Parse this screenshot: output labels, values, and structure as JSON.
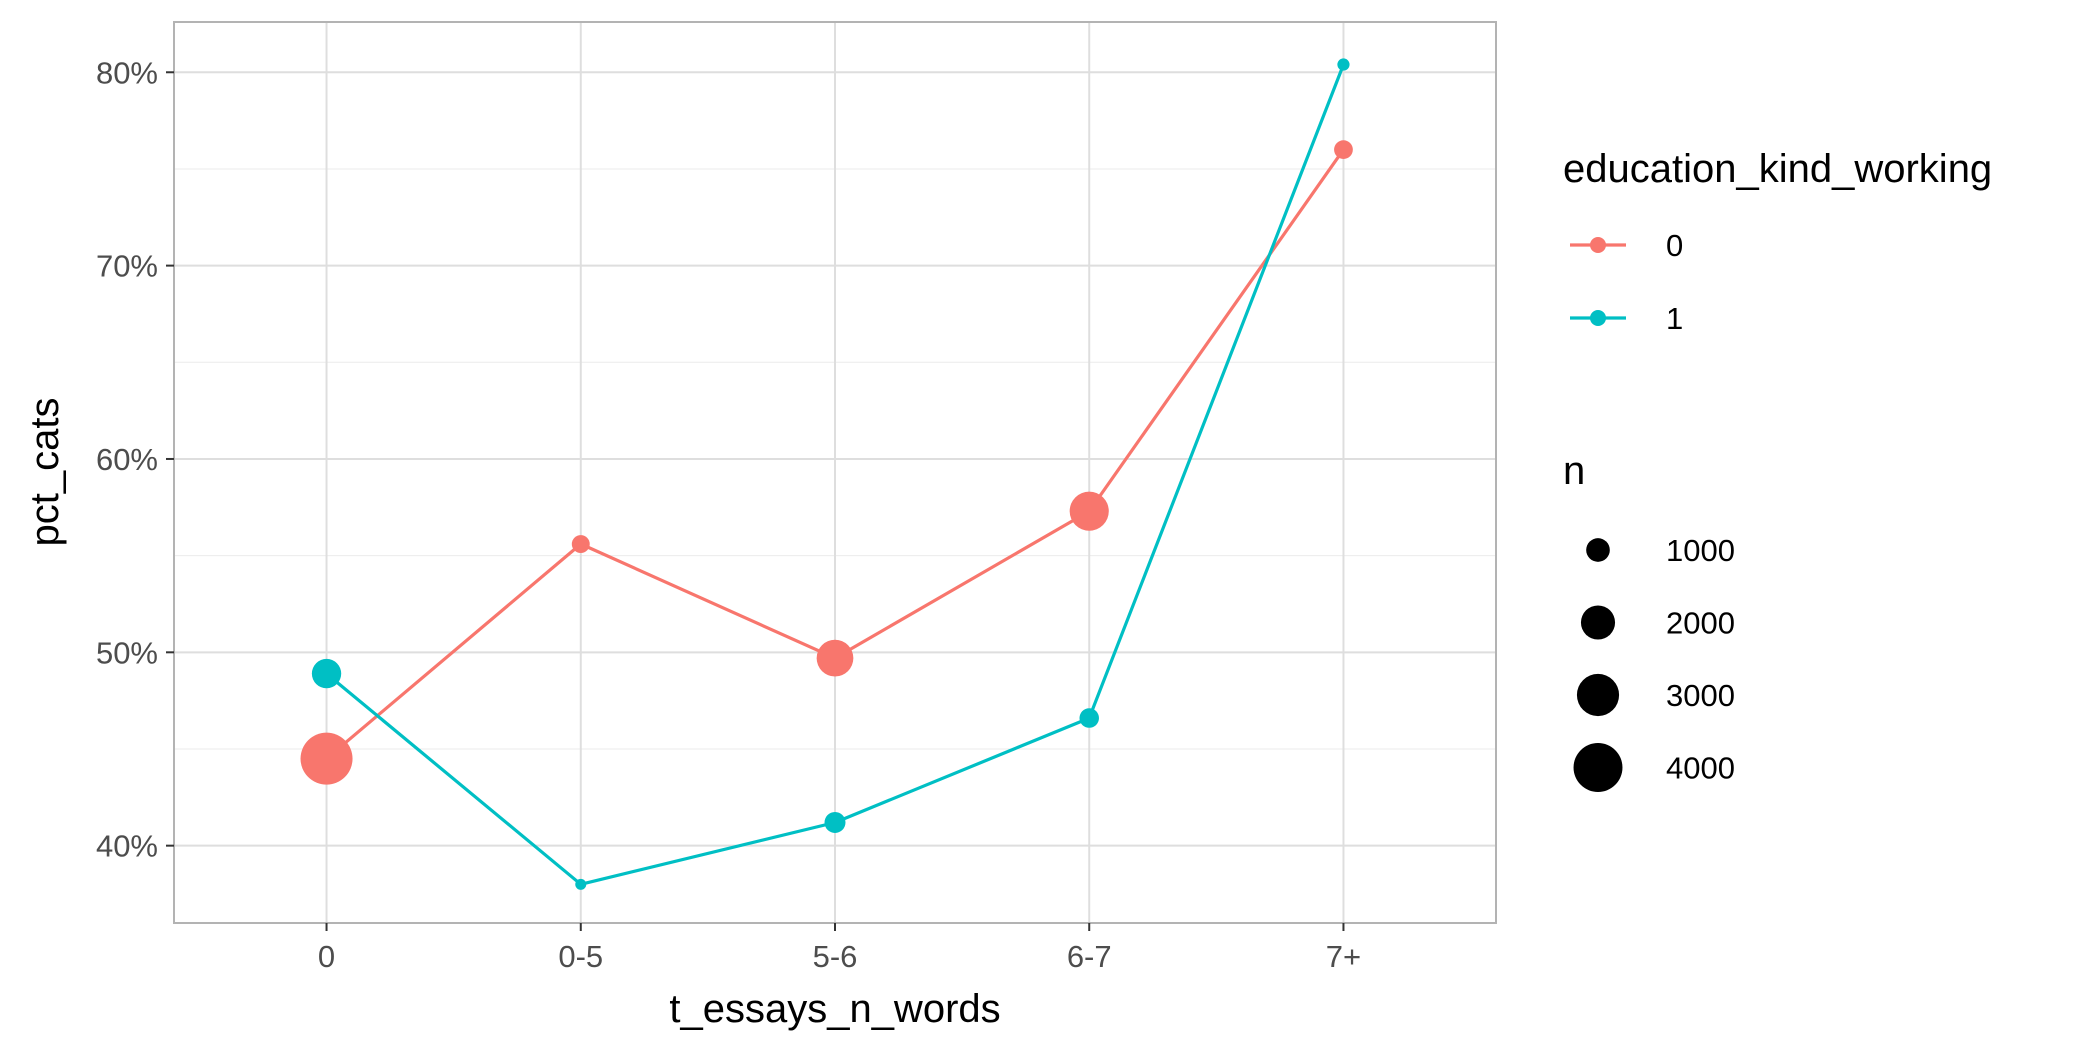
{
  "chart_data": {
    "type": "line",
    "xlabel": "t_essays_n_words",
    "ylabel": "pct_cats",
    "categories": [
      "0",
      "0-5",
      "5-6",
      "6-7",
      "7+"
    ],
    "ylim": [
      0.36,
      0.826
    ],
    "yticks": [
      0.4,
      0.5,
      0.6,
      0.7,
      0.8
    ],
    "ytick_labels": [
      "40%",
      "50%",
      "60%",
      "70%",
      "80%"
    ],
    "grid": true,
    "color_legend": {
      "title": "education_kind_working",
      "position": "right"
    },
    "size_legend": {
      "title": "n",
      "values": [
        1000,
        2000,
        3000,
        4000
      ],
      "labels": [
        "1000",
        "2000",
        "3000",
        "4000"
      ],
      "color": "#000000"
    },
    "series": [
      {
        "name": "0",
        "color": "#F8766D",
        "values": [
          0.445,
          0.556,
          0.497,
          0.573,
          0.76
        ],
        "n": [
          4500,
          600,
          2300,
          2600,
          650
        ]
      },
      {
        "name": "1",
        "color": "#00BFC4",
        "values": [
          0.489,
          0.38,
          0.412,
          0.466,
          0.804
        ],
        "n": [
          1500,
          250,
          800,
          700,
          300
        ]
      }
    ]
  }
}
